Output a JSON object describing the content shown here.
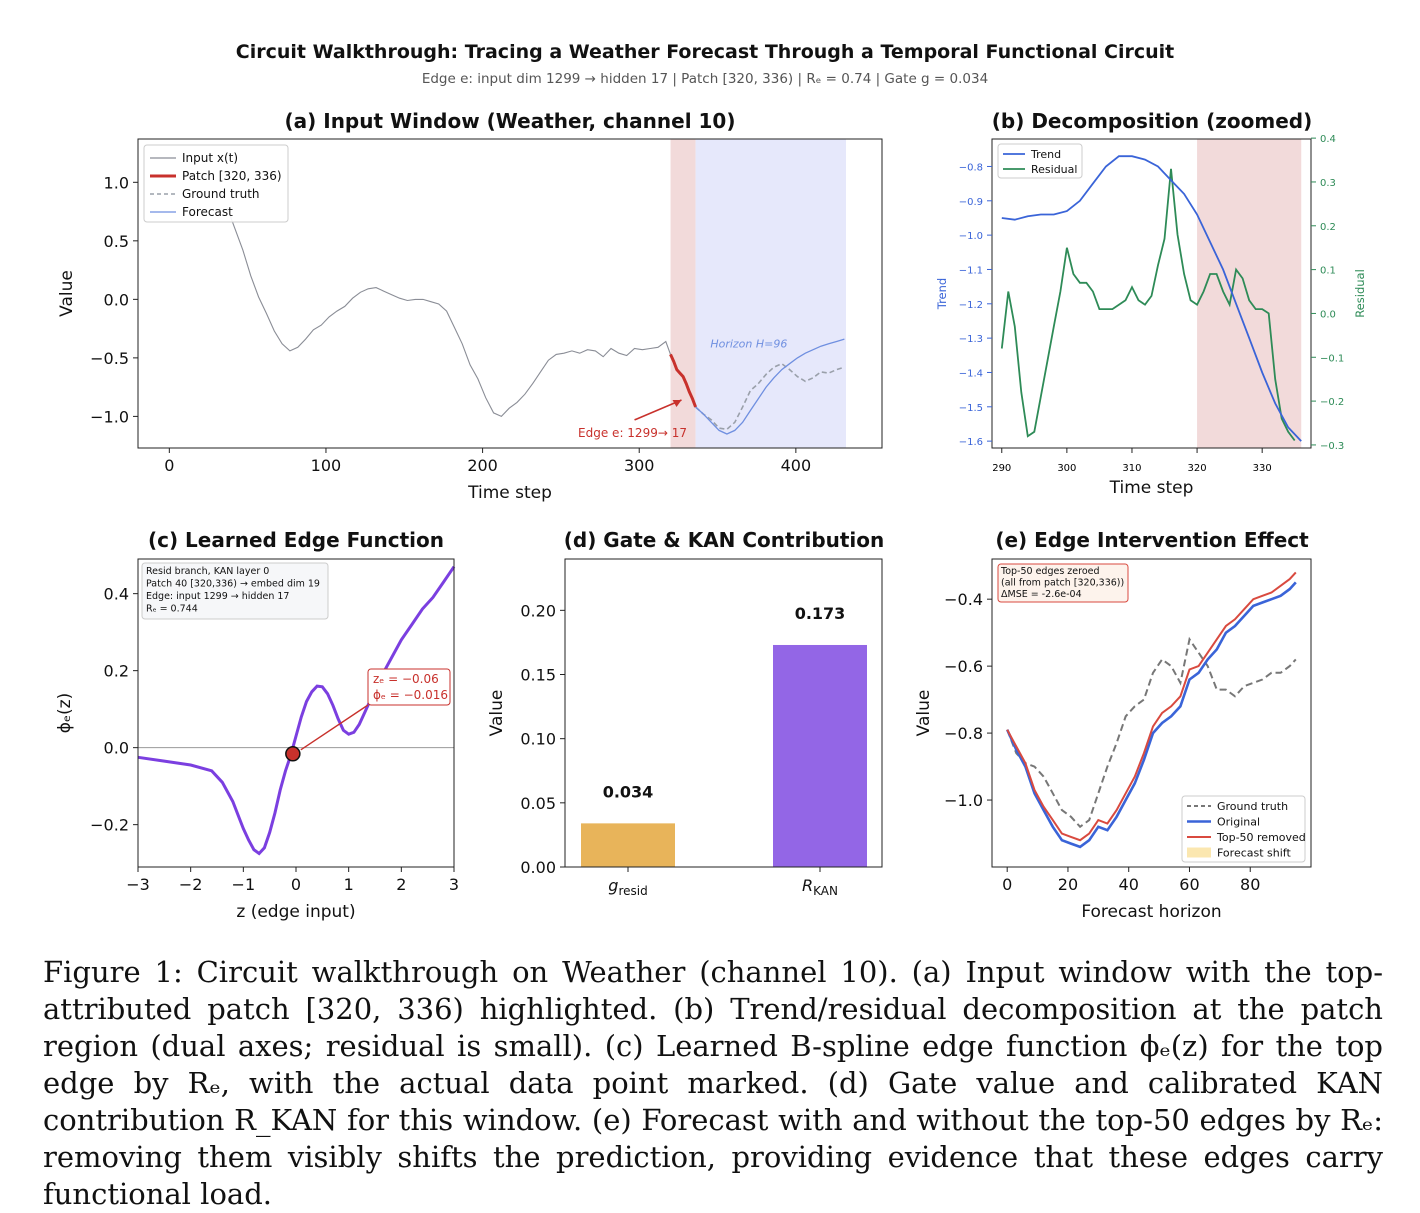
{
  "figure": {
    "suptitle": "Circuit Walkthrough: Tracing a Weather Forecast Through a Temporal Functional Circuit",
    "subtitle": "Edge e: input dim 1299 → hidden 17 | Patch [320, 336) | Rₑ = 0.74 | Gate g = 0.034"
  },
  "caption": "Figure 1: Circuit walkthrough on Weather (channel 10). (a) Input window with the top-attributed patch [320, 336) highlighted. (b) Trend/residual decomposition at the patch region (dual axes; residual is small). (c) Learned B-spline edge function ϕₑ(z) for the top edge by Rₑ, with the actual data point marked. (d) Gate value and calibrated KAN contribution R_KAN for this window. (e) Forecast with and without the top-50 edges by Rₑ: removing them visibly shifts the prediction, providing evidence that these edges carry functional load.",
  "colors": {
    "input": "#8a8d96",
    "patch": "#c8312c",
    "forecast": "#6f8fe0",
    "ground_truth": "#9aa0aa",
    "trend": "#3a64d8",
    "residual": "#2e8b57",
    "edge_fn": "#7b3fe0",
    "gate_bar": "#e8b45a",
    "kan_bar": "#9366e6",
    "original": "#3a64d8",
    "removed": "#d94a3f",
    "gt_dash": "#777777",
    "patch_shade": "#f2dada",
    "horizon_shade": "#e6e8fb"
  },
  "chart_data": [
    {
      "id": "a",
      "type": "line",
      "title": "(a) Input Window (Weather, channel 10)",
      "xlabel": "Time step",
      "ylabel": "Value",
      "xlim": [
        -20,
        455
      ],
      "ylim": [
        -1.27,
        1.37
      ],
      "xticks": [
        0,
        100,
        200,
        300,
        400
      ],
      "yticks": [
        1.0,
        0.5,
        0.0,
        -0.5,
        -1.0
      ],
      "ytick_labels": [
        "1.0",
        "0.5",
        "0.0",
        "−0.5",
        "−1.0"
      ],
      "legend": {
        "position": "upper-left",
        "entries": [
          "Input x(t)",
          "Patch [320, 336)",
          "Ground truth",
          "Forecast"
        ]
      },
      "annotations": {
        "edge": "Edge e: 1299→ 17",
        "horizon": "Horizon H=96"
      },
      "shaded": {
        "patch": [
          320,
          336
        ],
        "horizon": [
          336,
          432
        ]
      },
      "series": [
        {
          "name": "Input x(t)",
          "x": [
            37,
            42,
            47,
            52,
            57,
            62,
            67,
            72,
            77,
            82,
            87,
            92,
            97,
            102,
            107,
            112,
            117,
            122,
            127,
            132,
            137,
            142,
            147,
            152,
            157,
            162,
            167,
            172,
            177,
            182,
            187,
            192,
            197,
            202,
            207,
            212,
            217,
            222,
            227,
            232,
            237,
            242,
            247,
            252,
            257,
            262,
            267,
            272,
            277,
            282,
            287,
            292,
            297,
            302,
            307,
            312,
            317,
            320
          ],
          "y": [
            0.78,
            0.6,
            0.42,
            0.2,
            0.02,
            -0.12,
            -0.27,
            -0.38,
            -0.44,
            -0.41,
            -0.34,
            -0.26,
            -0.22,
            -0.15,
            -0.1,
            -0.06,
            0.01,
            0.06,
            0.09,
            0.1,
            0.07,
            0.04,
            0.01,
            -0.01,
            0.0,
            0.0,
            -0.02,
            -0.04,
            -0.1,
            -0.24,
            -0.38,
            -0.56,
            -0.68,
            -0.84,
            -0.97,
            -1.0,
            -0.93,
            -0.88,
            -0.81,
            -0.72,
            -0.62,
            -0.52,
            -0.47,
            -0.46,
            -0.44,
            -0.46,
            -0.43,
            -0.44,
            -0.49,
            -0.42,
            -0.46,
            -0.48,
            -0.42,
            -0.43,
            -0.42,
            -0.41,
            -0.36,
            -0.47
          ]
        },
        {
          "name": "Patch [320, 336)",
          "x": [
            320,
            322,
            324,
            326,
            328,
            330,
            332,
            334,
            336
          ],
          "y": [
            -0.47,
            -0.53,
            -0.6,
            -0.63,
            -0.66,
            -0.72,
            -0.79,
            -0.85,
            -0.92
          ]
        },
        {
          "name": "Ground truth",
          "x": [
            336,
            341,
            346,
            351,
            356,
            361,
            366,
            371,
            376,
            381,
            386,
            391,
            396,
            401,
            406,
            411,
            416,
            421,
            426,
            431
          ],
          "y": [
            -0.92,
            -0.98,
            -1.03,
            -1.1,
            -1.11,
            -1.05,
            -0.92,
            -0.78,
            -0.72,
            -0.64,
            -0.58,
            -0.55,
            -0.6,
            -0.66,
            -0.7,
            -0.67,
            -0.62,
            -0.63,
            -0.6,
            -0.58
          ]
        },
        {
          "name": "Forecast",
          "x": [
            336,
            341,
            346,
            351,
            356,
            361,
            366,
            371,
            376,
            381,
            386,
            391,
            396,
            401,
            406,
            411,
            416,
            421,
            426,
            431
          ],
          "y": [
            -0.92,
            -0.98,
            -1.05,
            -1.12,
            -1.15,
            -1.12,
            -1.05,
            -0.95,
            -0.85,
            -0.75,
            -0.67,
            -0.6,
            -0.55,
            -0.5,
            -0.46,
            -0.43,
            -0.4,
            -0.38,
            -0.36,
            -0.34
          ]
        }
      ]
    },
    {
      "id": "b",
      "type": "line",
      "title": "(b) Decomposition (zoomed)",
      "xlabel": "Time step",
      "ylabel_left": "Trend",
      "ylabel_right": "Residual",
      "xlim": [
        288.5,
        337.5
      ],
      "ylim_left": [
        -1.62,
        -0.72
      ],
      "ylim_right": [
        -0.307,
        0.398
      ],
      "xticks": [
        290,
        300,
        310,
        320,
        330
      ],
      "yticks_left": [
        -0.8,
        -0.9,
        -1.0,
        -1.1,
        -1.2,
        -1.3,
        -1.4,
        -1.5,
        -1.6
      ],
      "ytick_labels_left": [
        "−0.8",
        "−0.9",
        "−1.0",
        "−1.1",
        "−1.2",
        "−1.3",
        "−1.4",
        "−1.5",
        "−1.6"
      ],
      "yticks_right": [
        0.4,
        0.3,
        0.2,
        0.1,
        0.0,
        -0.1,
        -0.2,
        -0.3
      ],
      "ytick_labels_right": [
        "0.4",
        "0.3",
        "0.2",
        "0.1",
        "0.0",
        "−0.1",
        "−0.2",
        "−0.3"
      ],
      "legend": {
        "position": "upper-left",
        "entries": [
          "Trend",
          "Residual"
        ]
      },
      "shaded": {
        "patch": [
          320,
          336
        ]
      },
      "series": [
        {
          "name": "Trend",
          "axis": "left",
          "x": [
            290,
            292,
            294,
            296,
            298,
            300,
            302,
            304,
            306,
            308,
            310,
            312,
            314,
            316,
            318,
            320,
            322,
            324,
            326,
            328,
            330,
            332,
            334,
            336
          ],
          "y": [
            -0.95,
            -0.955,
            -0.945,
            -0.94,
            -0.94,
            -0.93,
            -0.9,
            -0.85,
            -0.8,
            -0.77,
            -0.77,
            -0.78,
            -0.8,
            -0.84,
            -0.88,
            -0.94,
            -1.02,
            -1.1,
            -1.2,
            -1.3,
            -1.4,
            -1.49,
            -1.56,
            -1.6
          ]
        },
        {
          "name": "Residual",
          "axis": "right",
          "x": [
            290,
            291,
            292,
            293,
            294,
            295,
            296,
            297,
            298,
            299,
            300,
            301,
            302,
            303,
            304,
            305,
            306,
            307,
            308,
            309,
            310,
            311,
            312,
            313,
            314,
            315,
            316,
            317,
            318,
            319,
            320,
            321,
            322,
            323,
            324,
            325,
            326,
            327,
            328,
            329,
            330,
            331,
            332,
            333,
            334,
            335
          ],
          "y": [
            -0.08,
            0.05,
            -0.03,
            -0.18,
            -0.28,
            -0.27,
            -0.19,
            -0.11,
            -0.03,
            0.05,
            0.15,
            0.09,
            0.07,
            0.07,
            0.05,
            0.01,
            0.01,
            0.01,
            0.02,
            0.03,
            0.06,
            0.03,
            0.02,
            0.04,
            0.11,
            0.17,
            0.33,
            0.18,
            0.09,
            0.03,
            0.02,
            0.05,
            0.09,
            0.09,
            0.05,
            0.02,
            0.1,
            0.08,
            0.03,
            0.01,
            0.01,
            0.0,
            -0.15,
            -0.24,
            -0.27,
            -0.29
          ]
        }
      ]
    },
    {
      "id": "c",
      "type": "line",
      "title": "(c) Learned Edge Function",
      "xlabel": "z (edge input)",
      "ylabel": "ϕₑ(z)",
      "xlim": [
        -3,
        3
      ],
      "ylim": [
        -0.31,
        0.49
      ],
      "xticks": [
        -3,
        -2,
        -1,
        0,
        1,
        2,
        3
      ],
      "xtick_labels": [
        "−3",
        "−2",
        "−1",
        "0",
        "1",
        "2",
        "3"
      ],
      "yticks": [
        0.4,
        0.2,
        0.0,
        -0.2
      ],
      "ytick_labels": [
        "0.4",
        "0.2",
        "0.0",
        "−0.2"
      ],
      "info_box": [
        "Resid branch, KAN layer 0",
        "Patch 40 [320,336) → embed dim 19",
        "Edge: input 1299 → hidden 17",
        "Rₑ = 0.744"
      ],
      "marked_point": {
        "z": -0.06,
        "phi": -0.016,
        "labels": [
          "zₑ = −0.06",
          "ϕₑ = −0.016"
        ]
      },
      "series": [
        {
          "name": "ϕₑ(z)",
          "x": [
            -3,
            -2.5,
            -2,
            -1.6,
            -1.4,
            -1.2,
            -1,
            -0.9,
            -0.8,
            -0.7,
            -0.6,
            -0.5,
            -0.4,
            -0.3,
            -0.2,
            -0.1,
            0,
            0.1,
            0.2,
            0.3,
            0.4,
            0.5,
            0.6,
            0.7,
            0.8,
            0.9,
            1,
            1.1,
            1.2,
            1.3,
            1.4,
            1.5,
            1.6,
            1.8,
            2,
            2.2,
            2.4,
            2.6,
            2.8,
            3
          ],
          "y": [
            -0.025,
            -0.035,
            -0.045,
            -0.06,
            -0.09,
            -0.14,
            -0.21,
            -0.24,
            -0.265,
            -0.275,
            -0.26,
            -0.22,
            -0.17,
            -0.11,
            -0.06,
            -0.02,
            0.03,
            0.08,
            0.12,
            0.145,
            0.16,
            0.158,
            0.14,
            0.11,
            0.075,
            0.045,
            0.035,
            0.04,
            0.06,
            0.09,
            0.12,
            0.15,
            0.18,
            0.23,
            0.28,
            0.32,
            0.36,
            0.39,
            0.43,
            0.47
          ]
        }
      ]
    },
    {
      "id": "d",
      "type": "bar",
      "title": "(d) Gate & KAN Contribution",
      "ylabel": "Value",
      "ylim": [
        0,
        0.24
      ],
      "yticks": [
        0.0,
        0.05,
        0.1,
        0.15,
        0.2
      ],
      "ytick_labels": [
        "0.00",
        "0.05",
        "0.10",
        "0.15",
        "0.20"
      ],
      "categories": [
        "g_resid",
        "R_KAN"
      ],
      "values": [
        0.034,
        0.173
      ],
      "value_labels": [
        "0.034",
        "0.173"
      ]
    },
    {
      "id": "e",
      "type": "line",
      "title": "(e) Edge Intervention Effect",
      "xlabel": "Forecast horizon",
      "ylabel": "Value",
      "xlim": [
        -5,
        100
      ],
      "ylim": [
        -1.2,
        -0.28
      ],
      "xticks": [
        0,
        20,
        40,
        60,
        80
      ],
      "yticks": [
        -0.4,
        -0.6,
        -0.8,
        -1.0
      ],
      "ytick_labels": [
        "−0.4",
        "−0.6",
        "−0.8",
        "−1.0"
      ],
      "info_box": [
        "Top-50 edges zeroed",
        "(all from patch [320,336))",
        "ΔMSE = -2.6e-04"
      ],
      "legend": {
        "position": "lower-right",
        "entries": [
          "Ground truth",
          "Original",
          "Top-50 removed",
          "Forecast shift"
        ]
      },
      "series": [
        {
          "name": "Ground truth",
          "x": [
            0,
            3,
            6,
            9,
            12,
            15,
            18,
            21,
            24,
            27,
            30,
            33,
            36,
            39,
            42,
            45,
            48,
            51,
            54,
            57,
            60,
            63,
            66,
            69,
            72,
            75,
            78,
            81,
            84,
            87,
            90,
            93,
            95
          ],
          "y": [
            -0.79,
            -0.86,
            -0.89,
            -0.9,
            -0.93,
            -0.98,
            -1.03,
            -1.05,
            -1.08,
            -1.06,
            -0.98,
            -0.9,
            -0.83,
            -0.75,
            -0.72,
            -0.7,
            -0.62,
            -0.58,
            -0.6,
            -0.65,
            -0.52,
            -0.56,
            -0.6,
            -0.67,
            -0.67,
            -0.69,
            -0.66,
            -0.65,
            -0.64,
            -0.62,
            -0.62,
            -0.6,
            -0.58
          ]
        },
        {
          "name": "Original",
          "x": [
            0,
            3,
            6,
            9,
            12,
            15,
            18,
            21,
            24,
            27,
            30,
            33,
            36,
            39,
            42,
            45,
            48,
            51,
            54,
            57,
            60,
            63,
            66,
            69,
            72,
            75,
            78,
            81,
            84,
            87,
            90,
            93,
            95
          ],
          "y": [
            -0.79,
            -0.85,
            -0.9,
            -0.98,
            -1.03,
            -1.08,
            -1.12,
            -1.13,
            -1.14,
            -1.12,
            -1.08,
            -1.09,
            -1.05,
            -1.0,
            -0.95,
            -0.88,
            -0.8,
            -0.77,
            -0.75,
            -0.72,
            -0.64,
            -0.62,
            -0.58,
            -0.55,
            -0.5,
            -0.48,
            -0.45,
            -0.42,
            -0.41,
            -0.4,
            -0.39,
            -0.37,
            -0.35
          ]
        },
        {
          "name": "Top-50 removed",
          "x": [
            0,
            3,
            6,
            9,
            12,
            15,
            18,
            21,
            24,
            27,
            30,
            33,
            36,
            39,
            42,
            45,
            48,
            51,
            54,
            57,
            60,
            63,
            66,
            69,
            72,
            75,
            78,
            81,
            84,
            87,
            90,
            93,
            95
          ],
          "y": [
            -0.79,
            -0.84,
            -0.89,
            -0.97,
            -1.02,
            -1.06,
            -1.1,
            -1.11,
            -1.12,
            -1.1,
            -1.06,
            -1.07,
            -1.03,
            -0.98,
            -0.93,
            -0.86,
            -0.78,
            -0.74,
            -0.72,
            -0.69,
            -0.61,
            -0.6,
            -0.56,
            -0.52,
            -0.48,
            -0.46,
            -0.43,
            -0.4,
            -0.39,
            -0.38,
            -0.36,
            -0.34,
            -0.32
          ]
        }
      ]
    }
  ]
}
